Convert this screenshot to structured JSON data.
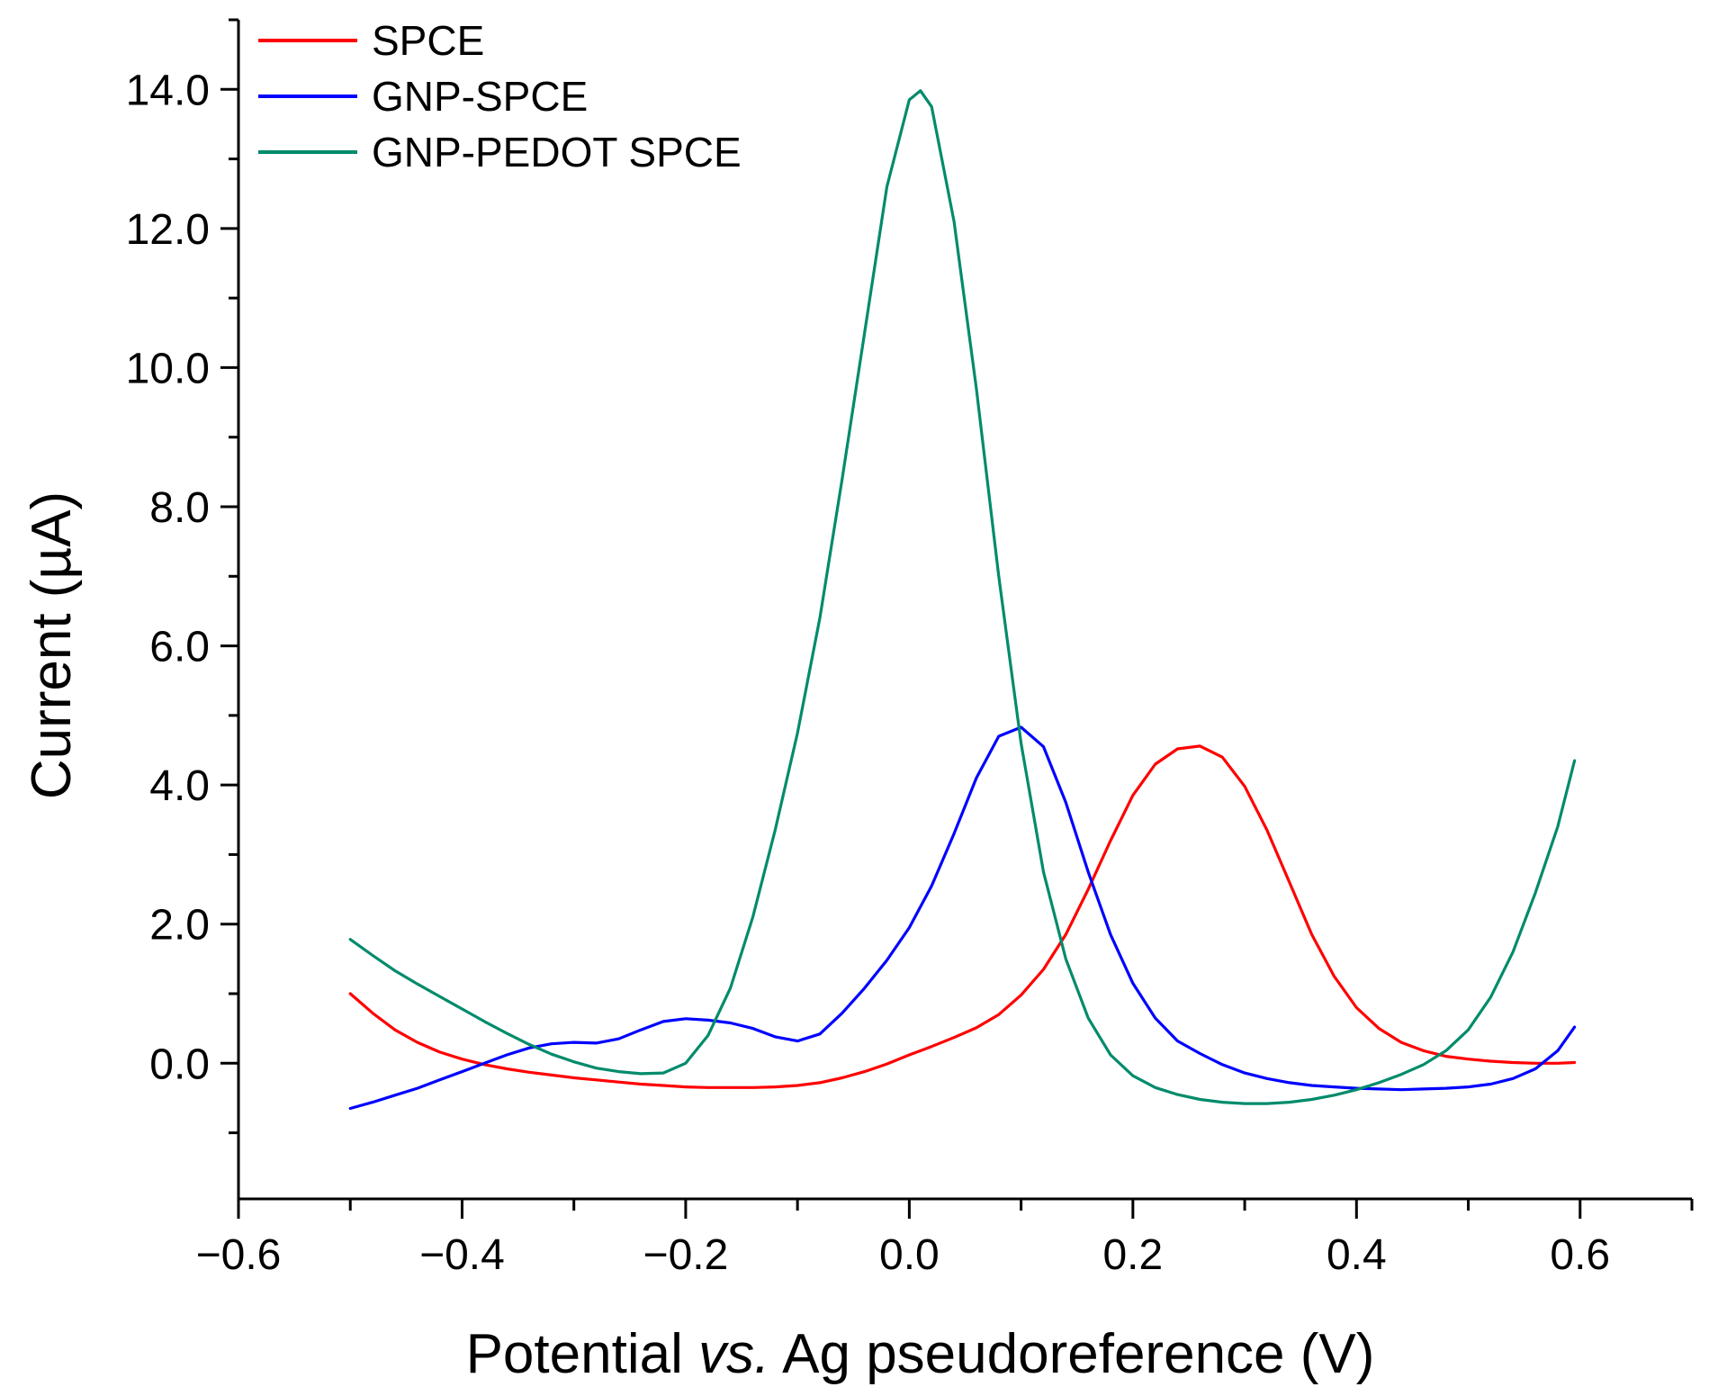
{
  "chart_data": {
    "type": "line",
    "title": "",
    "xlabel_parts": [
      {
        "text": "Potential ",
        "italic": false
      },
      {
        "text": "vs.",
        "italic": true
      },
      {
        "text": " Ag pseudoreference (V)",
        "italic": false
      }
    ],
    "ylabel": "Current (µA)",
    "xlim": [
      -0.6,
      0.7
    ],
    "ylim": [
      -1.95,
      15.0
    ],
    "x_ticks": [
      -0.6,
      -0.4,
      -0.2,
      0.0,
      0.2,
      0.4,
      0.6
    ],
    "x_tick_labels": [
      "−0.6",
      "−0.4",
      "−0.2",
      "0.0",
      "0.2",
      "0.4",
      "0.6"
    ],
    "y_ticks": [
      0,
      2,
      4,
      6,
      8,
      10,
      12,
      14
    ],
    "y_tick_labels": [
      "0.0",
      "2.0",
      "4.0",
      "6.0",
      "8.0",
      "10.0",
      "12.0",
      "14.0"
    ],
    "grid": false,
    "legend_position": "top-left",
    "series": [
      {
        "name": "SPCE",
        "color": "#ff0000",
        "x": [
          -0.5,
          -0.48,
          -0.46,
          -0.44,
          -0.42,
          -0.4,
          -0.38,
          -0.36,
          -0.34,
          -0.32,
          -0.3,
          -0.28,
          -0.26,
          -0.24,
          -0.22,
          -0.2,
          -0.18,
          -0.16,
          -0.14,
          -0.12,
          -0.1,
          -0.08,
          -0.06,
          -0.04,
          -0.02,
          0.0,
          0.02,
          0.04,
          0.06,
          0.08,
          0.1,
          0.12,
          0.14,
          0.16,
          0.18,
          0.2,
          0.22,
          0.24,
          0.26,
          0.28,
          0.3,
          0.32,
          0.34,
          0.36,
          0.38,
          0.4,
          0.42,
          0.44,
          0.46,
          0.48,
          0.5,
          0.52,
          0.54,
          0.56,
          0.58,
          0.595
        ],
        "y": [
          1.0,
          0.72,
          0.48,
          0.3,
          0.16,
          0.06,
          -0.02,
          -0.08,
          -0.13,
          -0.17,
          -0.21,
          -0.24,
          -0.27,
          -0.3,
          -0.32,
          -0.34,
          -0.35,
          -0.35,
          -0.35,
          -0.34,
          -0.32,
          -0.28,
          -0.21,
          -0.12,
          -0.01,
          0.12,
          0.24,
          0.37,
          0.51,
          0.7,
          0.98,
          1.35,
          1.85,
          2.5,
          3.2,
          3.85,
          4.3,
          4.52,
          4.56,
          4.4,
          3.98,
          3.35,
          2.6,
          1.85,
          1.25,
          0.8,
          0.5,
          0.3,
          0.18,
          0.1,
          0.06,
          0.03,
          0.01,
          0.0,
          0.0,
          0.01
        ]
      },
      {
        "name": "GNP-SPCE",
        "color": "#0000ff",
        "x": [
          -0.5,
          -0.48,
          -0.46,
          -0.44,
          -0.42,
          -0.4,
          -0.38,
          -0.36,
          -0.34,
          -0.32,
          -0.3,
          -0.28,
          -0.26,
          -0.24,
          -0.22,
          -0.2,
          -0.18,
          -0.16,
          -0.14,
          -0.12,
          -0.1,
          -0.08,
          -0.06,
          -0.04,
          -0.02,
          0.0,
          0.02,
          0.04,
          0.06,
          0.08,
          0.1,
          0.12,
          0.14,
          0.16,
          0.18,
          0.2,
          0.22,
          0.24,
          0.26,
          0.28,
          0.3,
          0.32,
          0.34,
          0.36,
          0.38,
          0.4,
          0.42,
          0.44,
          0.46,
          0.48,
          0.5,
          0.52,
          0.54,
          0.56,
          0.58,
          0.595
        ],
        "y": [
          -0.65,
          -0.56,
          -0.46,
          -0.36,
          -0.24,
          -0.12,
          0.0,
          0.12,
          0.22,
          0.28,
          0.3,
          0.29,
          0.35,
          0.48,
          0.6,
          0.64,
          0.62,
          0.58,
          0.5,
          0.38,
          0.32,
          0.42,
          0.72,
          1.08,
          1.48,
          1.95,
          2.55,
          3.3,
          4.1,
          4.7,
          4.83,
          4.55,
          3.75,
          2.75,
          1.85,
          1.15,
          0.65,
          0.32,
          0.14,
          -0.02,
          -0.14,
          -0.22,
          -0.28,
          -0.32,
          -0.34,
          -0.36,
          -0.37,
          -0.38,
          -0.37,
          -0.36,
          -0.34,
          -0.3,
          -0.22,
          -0.08,
          0.18,
          0.52
        ]
      },
      {
        "name": "GNP-PEDOT SPCE",
        "color": "#008b6b",
        "x": [
          -0.5,
          -0.48,
          -0.46,
          -0.44,
          -0.42,
          -0.4,
          -0.38,
          -0.36,
          -0.34,
          -0.32,
          -0.3,
          -0.28,
          -0.26,
          -0.24,
          -0.22,
          -0.2,
          -0.18,
          -0.16,
          -0.14,
          -0.12,
          -0.1,
          -0.08,
          -0.06,
          -0.04,
          -0.02,
          0.0,
          0.01,
          0.02,
          0.04,
          0.06,
          0.08,
          0.1,
          0.12,
          0.14,
          0.16,
          0.18,
          0.2,
          0.22,
          0.24,
          0.26,
          0.28,
          0.3,
          0.32,
          0.34,
          0.36,
          0.38,
          0.4,
          0.42,
          0.44,
          0.46,
          0.48,
          0.5,
          0.52,
          0.54,
          0.56,
          0.58,
          0.595
        ],
        "y": [
          1.78,
          1.55,
          1.33,
          1.14,
          0.96,
          0.78,
          0.6,
          0.43,
          0.27,
          0.13,
          0.02,
          -0.07,
          -0.12,
          -0.15,
          -0.14,
          0.0,
          0.4,
          1.08,
          2.1,
          3.35,
          4.75,
          6.4,
          8.4,
          10.5,
          12.6,
          13.85,
          13.98,
          13.75,
          12.1,
          9.7,
          7.0,
          4.6,
          2.75,
          1.5,
          0.65,
          0.12,
          -0.18,
          -0.35,
          -0.45,
          -0.52,
          -0.56,
          -0.58,
          -0.58,
          -0.56,
          -0.52,
          -0.46,
          -0.38,
          -0.28,
          -0.16,
          -0.02,
          0.18,
          0.48,
          0.95,
          1.6,
          2.45,
          3.4,
          4.35
        ]
      }
    ]
  }
}
